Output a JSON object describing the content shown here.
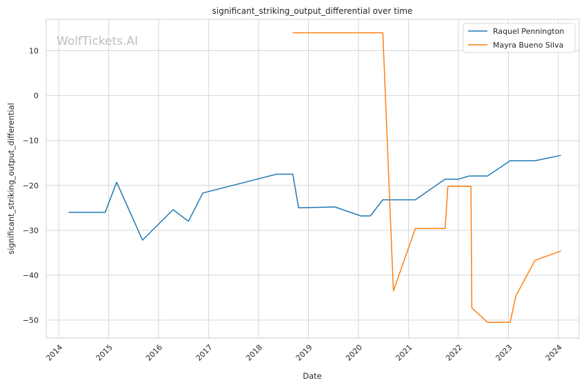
{
  "watermark": "WolfTickets.AI",
  "chart_data": {
    "type": "line",
    "title": "significant_striking_output_differential over time",
    "xlabel": "Date",
    "ylabel": "significant_striking_output_differential",
    "x_ticks": [
      "2014",
      "2015",
      "2016",
      "2017",
      "2018",
      "2019",
      "2020",
      "2021",
      "2022",
      "2023",
      "2024"
    ],
    "y_ticks": [
      10,
      0,
      -10,
      -20,
      -30,
      -40,
      -50
    ],
    "y_tick_labels": [
      "10",
      "0",
      "−10",
      "−20",
      "−30",
      "−40",
      "−50"
    ],
    "xlim": [
      "2013-10-01",
      "2024-06-01"
    ],
    "ylim": [
      -54,
      17
    ],
    "grid": true,
    "legend_position": "top-right",
    "series": [
      {
        "name": "Raquel Pennington",
        "color": "#1f77b4",
        "points": [
          [
            "2014-03-15",
            -26.0
          ],
          [
            "2014-12-06",
            -26.0
          ],
          [
            "2015-02-28",
            -19.3
          ],
          [
            "2015-09-05",
            -32.2
          ],
          [
            "2016-04-16",
            -25.4
          ],
          [
            "2016-08-06",
            -28.0
          ],
          [
            "2016-11-19",
            -21.7
          ],
          [
            "2018-05-12",
            -17.5
          ],
          [
            "2018-09-08",
            -17.5
          ],
          [
            "2018-10-20",
            -25.0
          ],
          [
            "2019-07-13",
            -24.8
          ],
          [
            "2020-01-18",
            -26.8
          ],
          [
            "2020-03-28",
            -26.8
          ],
          [
            "2020-06-27",
            -23.2
          ],
          [
            "2021-02-20",
            -23.2
          ],
          [
            "2021-09-25",
            -18.6
          ],
          [
            "2021-12-31",
            -18.6
          ],
          [
            "2022-03-20",
            -17.9
          ],
          [
            "2022-08-01",
            -17.9
          ],
          [
            "2023-01-14",
            -14.5
          ],
          [
            "2023-07-15",
            -14.5
          ],
          [
            "2024-01-20",
            -13.3
          ]
        ]
      },
      {
        "name": "Mayra Bueno Silva",
        "color": "#ff7f0e",
        "points": [
          [
            "2018-09-08",
            14.0
          ],
          [
            "2020-06-27",
            14.0
          ],
          [
            "2020-09-12",
            -43.5
          ],
          [
            "2021-02-20",
            -29.6
          ],
          [
            "2021-09-25",
            -29.6
          ],
          [
            "2021-10-16",
            -20.2
          ],
          [
            "2022-04-02",
            -20.2
          ],
          [
            "2022-04-09",
            -47.3
          ],
          [
            "2022-08-01",
            -50.5
          ],
          [
            "2023-01-14",
            -50.5
          ],
          [
            "2023-02-25",
            -44.6
          ],
          [
            "2023-07-15",
            -36.7
          ],
          [
            "2024-01-20",
            -34.6
          ]
        ]
      }
    ]
  }
}
